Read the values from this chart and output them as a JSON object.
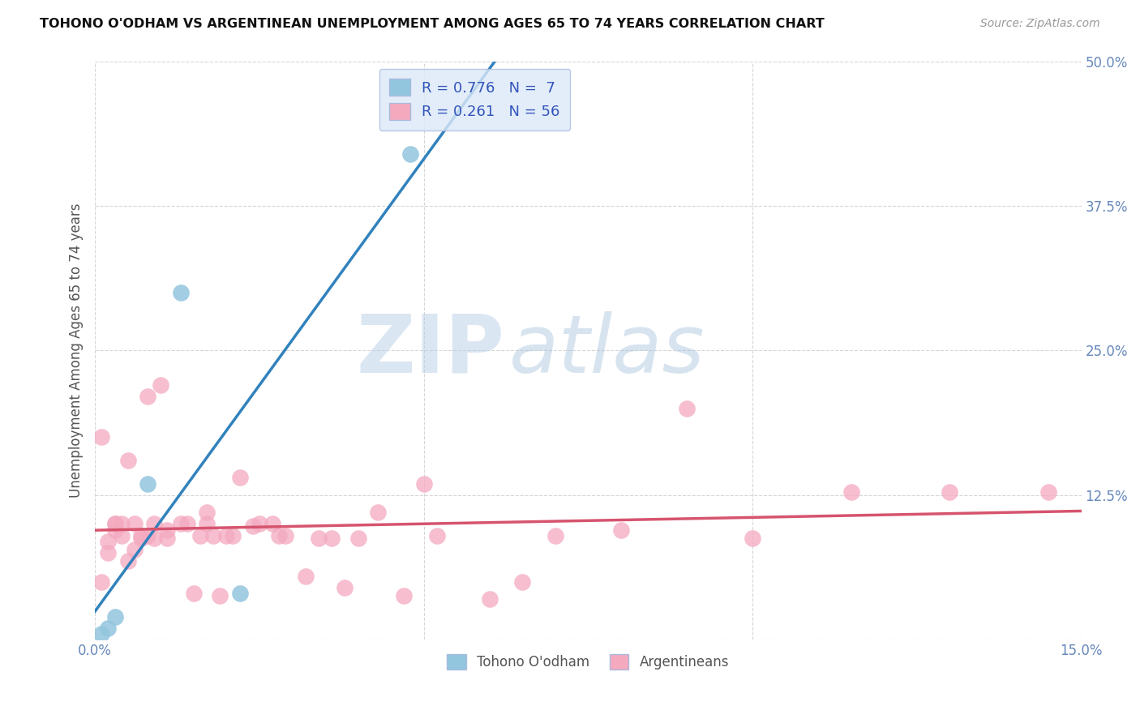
{
  "title": "TOHONO O'ODHAM VS ARGENTINEAN UNEMPLOYMENT AMONG AGES 65 TO 74 YEARS CORRELATION CHART",
  "source": "Source: ZipAtlas.com",
  "ylabel": "Unemployment Among Ages 65 to 74 years",
  "xlim": [
    0.0,
    0.15
  ],
  "ylim": [
    0.0,
    0.5
  ],
  "xticks": [
    0.0,
    0.05,
    0.1,
    0.15
  ],
  "xticklabels": [
    "0.0%",
    "",
    "",
    "15.0%"
  ],
  "yticks": [
    0.0,
    0.125,
    0.25,
    0.375,
    0.5
  ],
  "yticklabels": [
    "",
    "12.5%",
    "25.0%",
    "37.5%",
    "50.0%"
  ],
  "grid_color": "#cccccc",
  "background_color": "#ffffff",
  "watermark_zip": "ZIP",
  "watermark_atlas": "atlas",
  "legend_R1": "R = 0.776",
  "legend_N1": "N =  7",
  "legend_R2": "R = 0.261",
  "legend_N2": "N = 56",
  "tohono_color": "#92c5de",
  "argentinean_color": "#f4a9bf",
  "tohono_line_color": "#3182bd",
  "argentinean_line_color": "#d6546e",
  "tohono_x": [
    0.001,
    0.002,
    0.003,
    0.008,
    0.013,
    0.022,
    0.048
  ],
  "tohono_y": [
    0.005,
    0.01,
    0.02,
    0.135,
    0.3,
    0.04,
    0.42
  ],
  "argentinean_x": [
    0.001,
    0.001,
    0.002,
    0.002,
    0.003,
    0.003,
    0.003,
    0.004,
    0.004,
    0.005,
    0.005,
    0.006,
    0.006,
    0.007,
    0.007,
    0.008,
    0.008,
    0.009,
    0.009,
    0.01,
    0.011,
    0.011,
    0.013,
    0.014,
    0.015,
    0.016,
    0.017,
    0.017,
    0.018,
    0.019,
    0.02,
    0.021,
    0.022,
    0.024,
    0.025,
    0.027,
    0.028,
    0.029,
    0.032,
    0.034,
    0.036,
    0.038,
    0.04,
    0.043,
    0.047,
    0.05,
    0.052,
    0.06,
    0.065,
    0.07,
    0.08,
    0.09,
    0.1,
    0.115,
    0.13,
    0.145
  ],
  "argentinean_y": [
    0.175,
    0.05,
    0.085,
    0.075,
    0.1,
    0.095,
    0.1,
    0.1,
    0.09,
    0.155,
    0.068,
    0.1,
    0.078,
    0.09,
    0.088,
    0.09,
    0.21,
    0.1,
    0.088,
    0.22,
    0.095,
    0.088,
    0.1,
    0.1,
    0.04,
    0.09,
    0.11,
    0.1,
    0.09,
    0.038,
    0.09,
    0.09,
    0.14,
    0.098,
    0.1,
    0.1,
    0.09,
    0.09,
    0.055,
    0.088,
    0.088,
    0.045,
    0.088,
    0.11,
    0.038,
    0.135,
    0.09,
    0.035,
    0.05,
    0.09,
    0.095,
    0.2,
    0.088,
    0.128,
    0.128,
    0.128
  ],
  "legend_box_color": "#dce9f8",
  "legend_border_color": "#aabbdd",
  "tick_color": "#6688bb"
}
